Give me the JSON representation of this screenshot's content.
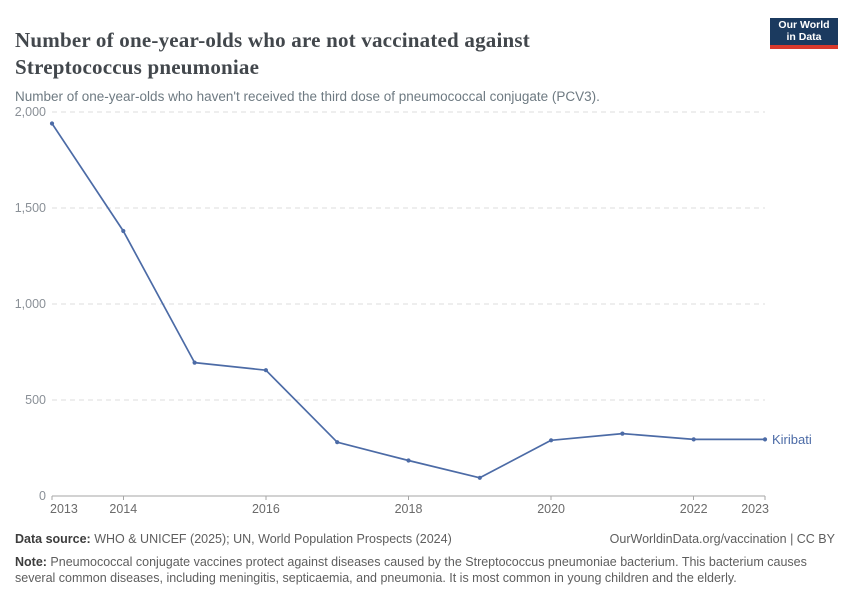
{
  "header": {
    "title": "Number of one-year-olds who are not vaccinated against Streptococcus pneumoniae",
    "subtitle": "Number of one-year-olds who haven't received the third dose of pneumococcal conjugate (PCV3).",
    "logo": {
      "line1": "Our World",
      "line2": "in Data"
    }
  },
  "chart_data": {
    "type": "line",
    "title": "Number of one-year-olds who are not vaccinated against Streptococcus pneumoniae",
    "x": [
      2013,
      2014,
      2015,
      2016,
      2017,
      2018,
      2019,
      2020,
      2021,
      2022,
      2023
    ],
    "series": [
      {
        "name": "Kiribati",
        "values": [
          1940,
          1380,
          695,
          655,
          280,
          185,
          95,
          290,
          325,
          295,
          295
        ]
      }
    ],
    "end_label": "Kiribati",
    "ylim": [
      0,
      2000
    ],
    "y_tick_values": [
      0,
      500,
      1000,
      1500,
      2000
    ],
    "y_tick_labels": [
      "0",
      "500",
      "1,000",
      "1,500",
      "2,000"
    ],
    "x_tick_years": [
      2013,
      2014,
      2016,
      2018,
      2020,
      2022,
      2023
    ],
    "x_tick_labels": [
      "2013",
      "2014",
      "2016",
      "2018",
      "2020",
      "2022",
      "2023"
    ],
    "grid": "horizontal-dashed",
    "legend": "line-end-label"
  },
  "colors": {
    "line": "#4c6ba6",
    "entity_label": "#4c6ba6",
    "grid": "#dcdcdc",
    "axis": "#a6a6a6",
    "y_tick_label": "#8a9097",
    "x_tick_label": "#6b6b6b",
    "logo_bg": "#1b3a5f",
    "logo_red": "#d93a2d",
    "title": "#42474c",
    "subtitle": "#6e7a82"
  },
  "footer": {
    "data_source_label": "Data source:",
    "data_source_text": " WHO & UNICEF (2025); UN, World Population Prospects (2024)",
    "citation": "OurWorldinData.org/vaccination | CC BY",
    "note_label": "Note:",
    "note_text": " Pneumococcal conjugate vaccines protect against diseases caused by the Streptococcus pneumoniae bacterium. This bacterium causes several common diseases, including meningitis, septicaemia, and pneumonia. It is most common in young children and the elderly."
  }
}
